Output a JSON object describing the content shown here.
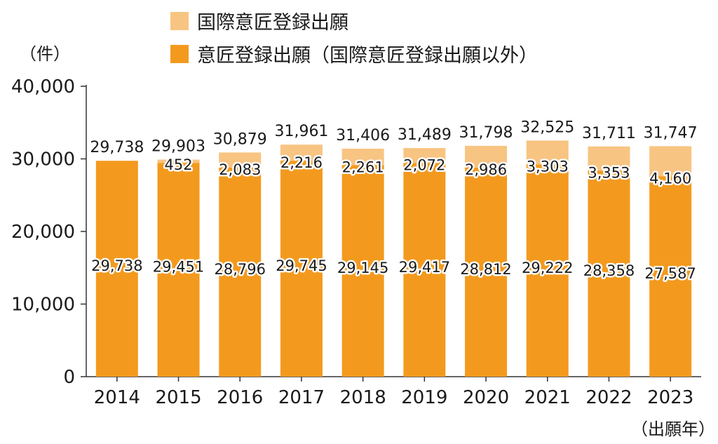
{
  "chart_data": {
    "type": "bar",
    "stacked": true,
    "unit_label": "（件）",
    "xlabel": "（出願年）",
    "categories": [
      "2014",
      "2015",
      "2016",
      "2017",
      "2018",
      "2019",
      "2020",
      "2021",
      "2022",
      "2023"
    ],
    "series": [
      {
        "name": "意匠登録出願（国際意匠登録出願以外）",
        "color": "#F39A1E",
        "values": [
          29738,
          29451,
          28796,
          29745,
          29145,
          29417,
          28812,
          29222,
          28358,
          27587
        ],
        "labels": [
          "29,738",
          "29,451",
          "28,796",
          "29,745",
          "29,145",
          "29,417",
          "28,812",
          "29,222",
          "28,358",
          "27,587"
        ]
      },
      {
        "name": "国際意匠登録出願",
        "color": "#F8C482",
        "values": [
          0,
          452,
          2083,
          2216,
          2261,
          2072,
          2986,
          3303,
          3353,
          4160
        ],
        "labels": [
          "",
          "452",
          "2,083",
          "2,216",
          "2,261",
          "2,072",
          "2,986",
          "3,303",
          "3,353",
          "4,160"
        ]
      }
    ],
    "totals": [
      "29,738",
      "29,903",
      "30,879",
      "31,961",
      "31,406",
      "31,489",
      "31,798",
      "32,525",
      "31,711",
      "31,747"
    ],
    "total_values": [
      29738,
      29903,
      30879,
      31961,
      31406,
      31489,
      31798,
      32525,
      31711,
      31747
    ],
    "ylim": [
      0,
      40000
    ],
    "yticks": [
      0,
      10000,
      20000,
      30000,
      40000
    ],
    "ytick_labels": [
      "0",
      "10,000",
      "20,000",
      "30,000",
      "40,000"
    ],
    "legend": {
      "placement": "top",
      "items": [
        {
          "label": "国際意匠登録出願",
          "color": "#F8C482"
        },
        {
          "label": "意匠登録出願（国際意匠登録出願以外）",
          "color": "#F39A1E"
        }
      ]
    }
  }
}
